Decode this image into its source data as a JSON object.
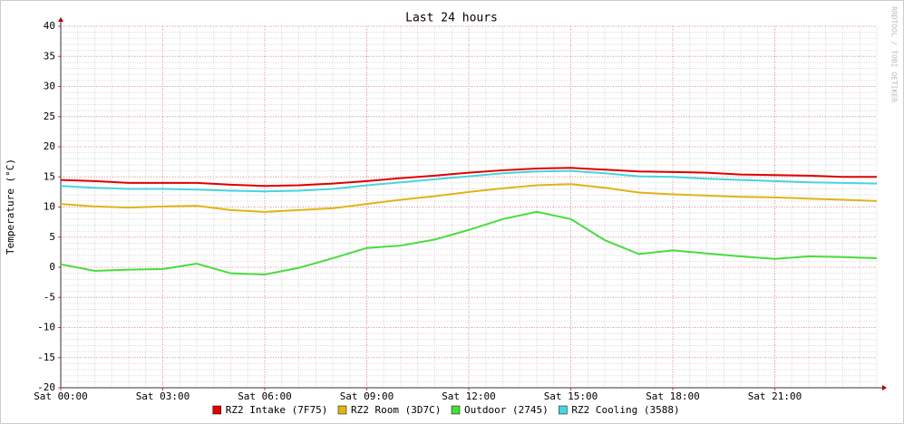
{
  "chart_data": {
    "type": "line",
    "title": "Last 24 hours",
    "y_label": "Temperature (°C)",
    "side_note": "RRDTOOL / TOBI OETIKER",
    "x": [
      0,
      1,
      2,
      3,
      4,
      5,
      6,
      7,
      8,
      9,
      10,
      11,
      12,
      13,
      14,
      15,
      16,
      17,
      18,
      19,
      20,
      21,
      22,
      23,
      24
    ],
    "xlim": [
      0,
      24
    ],
    "xticks": [
      {
        "value": 0,
        "label": "Sat 00:00"
      },
      {
        "value": 3,
        "label": "Sat 03:00"
      },
      {
        "value": 6,
        "label": "Sat 06:00"
      },
      {
        "value": 9,
        "label": "Sat 09:00"
      },
      {
        "value": 12,
        "label": "Sat 12:00"
      },
      {
        "value": 15,
        "label": "Sat 15:00"
      },
      {
        "value": 18,
        "label": "Sat 18:00"
      },
      {
        "value": 21,
        "label": "Sat 21:00"
      }
    ],
    "ylim": [
      -20,
      40
    ],
    "yticks": [
      -20,
      -15,
      -10,
      -5,
      0,
      5,
      10,
      15,
      20,
      25,
      30,
      35,
      40
    ],
    "grid": true,
    "series": [
      {
        "name": "RZ2 Intake (7F75)",
        "color": "#e00000",
        "values": [
          14.5,
          14.3,
          14.0,
          14.0,
          14.0,
          13.7,
          13.5,
          13.6,
          13.9,
          14.3,
          14.8,
          15.2,
          15.7,
          16.1,
          16.4,
          16.5,
          16.2,
          15.9,
          15.8,
          15.7,
          15.4,
          15.3,
          15.2,
          15.0,
          15.0
        ]
      },
      {
        "name": "RZ2 Room (3D7C)",
        "color": "#e0b418",
        "values": [
          10.5,
          10.1,
          9.9,
          10.1,
          10.2,
          9.5,
          9.2,
          9.5,
          9.8,
          10.5,
          11.2,
          11.8,
          12.5,
          13.1,
          13.6,
          13.8,
          13.2,
          12.4,
          12.1,
          11.9,
          11.7,
          11.6,
          11.4,
          11.2,
          11.0
        ]
      },
      {
        "name": "Outdoor (2745)",
        "color": "#48dc3c",
        "values": [
          0.5,
          -0.6,
          -0.4,
          -0.3,
          0.6,
          -1.0,
          -1.2,
          -0.1,
          1.5,
          3.2,
          3.6,
          4.6,
          6.2,
          8.0,
          9.2,
          8.0,
          4.5,
          2.2,
          2.8,
          2.3,
          1.8,
          1.4,
          1.8,
          1.7,
          1.5
        ]
      },
      {
        "name": "RZ2 Cooling (3588)",
        "color": "#48d4e0",
        "values": [
          13.5,
          13.2,
          13.0,
          13.0,
          12.9,
          12.7,
          12.6,
          12.7,
          13.0,
          13.6,
          14.1,
          14.6,
          15.1,
          15.6,
          15.9,
          16.0,
          15.6,
          15.1,
          15.0,
          14.7,
          14.5,
          14.3,
          14.1,
          14.0,
          13.9
        ]
      }
    ]
  }
}
